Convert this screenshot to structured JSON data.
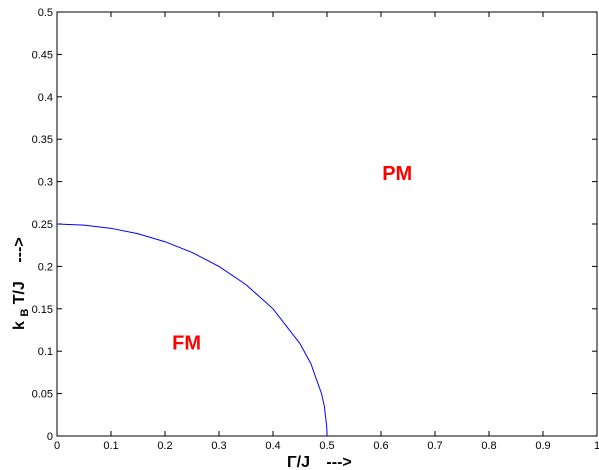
{
  "chart_data": {
    "type": "line",
    "xlim": [
      0,
      1
    ],
    "ylim": [
      0,
      0.5
    ],
    "x_ticks": [
      0,
      0.1,
      0.2,
      0.3,
      0.4,
      0.5,
      0.6,
      0.7,
      0.8,
      0.9,
      1
    ],
    "x_tick_labels": [
      "0",
      "0.1",
      "0.2",
      "0.3",
      "0.4",
      "0.5",
      "0.6",
      "0.7",
      "0.8",
      "0.9",
      "1"
    ],
    "y_ticks": [
      0,
      0.05,
      0.1,
      0.15,
      0.2,
      0.25,
      0.3,
      0.35,
      0.4,
      0.45,
      0.5
    ],
    "y_tick_labels": [
      "0",
      "0.05",
      "0.1",
      "0.15",
      "0.2",
      "0.25",
      "0.3",
      "0.35",
      "0.4",
      "0.45",
      "0.5"
    ],
    "xlabel_main": "Γ/J",
    "xlabel_arrow": "--->",
    "ylabel_k": "k",
    "ylabel_sub": "B",
    "ylabel_rest": " T/J",
    "ylabel_arrow": "--->",
    "grid": false,
    "legend": "none",
    "series": [
      {
        "color": "#0000ff",
        "x": [
          0,
          0.05,
          0.1,
          0.15,
          0.2,
          0.25,
          0.3,
          0.35,
          0.4,
          0.45,
          0.47,
          0.49,
          0.495,
          0.4995,
          0.5,
          0.5
        ],
        "y": [
          0.25,
          0.2487,
          0.2449,
          0.2385,
          0.2291,
          0.2165,
          0.2,
          0.1785,
          0.15,
          0.1089,
          0.0855,
          0.0497,
          0.0353,
          0.0112,
          0.002,
          0
        ]
      }
    ],
    "annotations": [
      {
        "text": "FM",
        "x": 0.24,
        "y": 0.11,
        "color": "#ff0000"
      },
      {
        "text": "PM",
        "x": 0.63,
        "y": 0.31,
        "color": "#ff0000"
      }
    ]
  }
}
